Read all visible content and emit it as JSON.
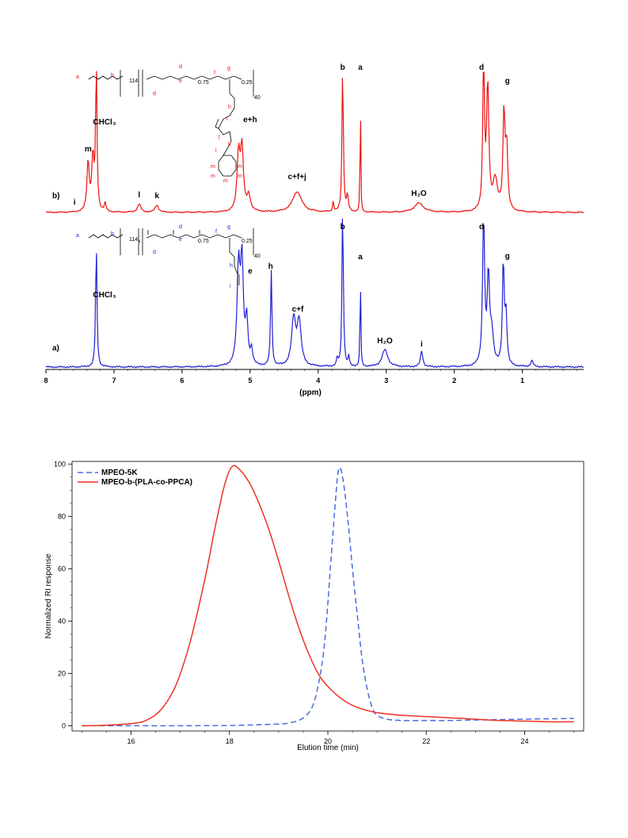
{
  "chart_data": [
    {
      "type": "line",
      "xlabel": "(ppm)",
      "ylabel": "",
      "xlim": [
        8.0,
        0.1
      ],
      "x_reversed": true,
      "xticks": [
        8,
        7,
        6,
        5,
        4,
        3,
        2,
        1
      ],
      "colors": {
        "a": "#1f1fd6",
        "b": "#ee1111"
      },
      "series": [
        {
          "name": "a)",
          "peaks": [
            {
              "ppm": 7.26,
              "h": 1.0,
              "w": 0.012
            },
            {
              "ppm": 5.17,
              "h": 0.78,
              "w": 0.025
            },
            {
              "ppm": 5.12,
              "h": 0.82,
              "w": 0.025
            },
            {
              "ppm": 5.05,
              "h": 0.35,
              "w": 0.02
            },
            {
              "ppm": 4.98,
              "h": 0.12,
              "w": 0.02
            },
            {
              "ppm": 4.69,
              "h": 0.78,
              "w": 0.012
            },
            {
              "ppm": 4.36,
              "h": 0.38,
              "w": 0.035
            },
            {
              "ppm": 4.28,
              "h": 0.36,
              "w": 0.035
            },
            {
              "ppm": 3.72,
              "h": 0.07,
              "w": 0.01
            },
            {
              "ppm": 3.64,
              "h": 1.3,
              "w": 0.012
            },
            {
              "ppm": 3.55,
              "h": 0.08,
              "w": 0.01
            },
            {
              "ppm": 3.38,
              "h": 0.85,
              "w": 0.006
            },
            {
              "ppm": 3.02,
              "h": 0.14,
              "w": 0.05
            },
            {
              "ppm": 2.48,
              "h": 0.13,
              "w": 0.02
            },
            {
              "ppm": 1.57,
              "h": 1.2,
              "w": 0.018
            },
            {
              "ppm": 1.5,
              "h": 0.7,
              "w": 0.02
            },
            {
              "ppm": 1.45,
              "h": 0.25,
              "w": 0.03
            },
            {
              "ppm": 1.28,
              "h": 0.85,
              "w": 0.016
            },
            {
              "ppm": 1.24,
              "h": 0.4,
              "w": 0.016
            },
            {
              "ppm": 0.86,
              "h": 0.05,
              "w": 0.02
            }
          ]
        },
        {
          "name": "b)",
          "peaks": [
            {
              "ppm": 7.38,
              "h": 0.48,
              "w": 0.02
            },
            {
              "ppm": 7.31,
              "h": 0.52,
              "w": 0.02
            },
            {
              "ppm": 7.26,
              "h": 1.4,
              "w": 0.012
            },
            {
              "ppm": 7.13,
              "h": 0.08,
              "w": 0.015
            },
            {
              "ppm": 6.63,
              "h": 0.08,
              "w": 0.03
            },
            {
              "ppm": 6.37,
              "h": 0.07,
              "w": 0.03
            },
            {
              "ppm": 5.17,
              "h": 0.55,
              "w": 0.025
            },
            {
              "ppm": 5.12,
              "h": 0.6,
              "w": 0.025
            },
            {
              "ppm": 5.02,
              "h": 0.15,
              "w": 0.03
            },
            {
              "ppm": 4.31,
              "h": 0.2,
              "w": 0.08
            },
            {
              "ppm": 3.78,
              "h": 0.1,
              "w": 0.01
            },
            {
              "ppm": 3.64,
              "h": 1.4,
              "w": 0.012
            },
            {
              "ppm": 3.57,
              "h": 0.15,
              "w": 0.015
            },
            {
              "ppm": 3.38,
              "h": 1.4,
              "w": 0.005
            },
            {
              "ppm": 2.52,
              "h": 0.09,
              "w": 0.08
            },
            {
              "ppm": 1.57,
              "h": 1.4,
              "w": 0.015
            },
            {
              "ppm": 1.51,
              "h": 1.2,
              "w": 0.02
            },
            {
              "ppm": 1.4,
              "h": 0.3,
              "w": 0.04
            },
            {
              "ppm": 1.27,
              "h": 0.95,
              "w": 0.018
            },
            {
              "ppm": 1.23,
              "h": 0.6,
              "w": 0.018
            }
          ]
        }
      ],
      "labels_a": [
        {
          "text": "CHCl3",
          "ppm": 7.14,
          "dy": -88
        },
        {
          "text": "e",
          "ppm": 5.0,
          "dy": -118
        },
        {
          "text": "h",
          "ppm": 4.7,
          "dy": -124
        },
        {
          "text": "c+f",
          "ppm": 4.3,
          "dy": -70
        },
        {
          "text": "b",
          "ppm": 3.64,
          "dy": -174
        },
        {
          "text": "a",
          "ppm": 3.38,
          "dy": -136
        },
        {
          "text": "H2O",
          "ppm": 3.02,
          "dy": -30
        },
        {
          "text": "i",
          "ppm": 2.48,
          "dy": -26
        },
        {
          "text": "d",
          "ppm": 1.6,
          "dy": -174
        },
        {
          "text": "g",
          "ppm": 1.22,
          "dy": -137
        }
      ],
      "labels_b": [
        {
          "text": "CHCl3",
          "ppm": 7.14,
          "dy": -111
        },
        {
          "text": "i",
          "ppm": 7.58,
          "dy": -10
        },
        {
          "text": "m",
          "ppm": 7.38,
          "dy": -77
        },
        {
          "text": "l",
          "ppm": 6.63,
          "dy": -19
        },
        {
          "text": "k",
          "ppm": 6.37,
          "dy": -18
        },
        {
          "text": "e+h",
          "ppm": 5.0,
          "dy": -114
        },
        {
          "text": "c+f+j",
          "ppm": 4.31,
          "dy": -42
        },
        {
          "text": "b",
          "ppm": 3.64,
          "dy": -180
        },
        {
          "text": "a",
          "ppm": 3.38,
          "dy": -180
        },
        {
          "text": "H2O",
          "ppm": 2.52,
          "dy": -21
        },
        {
          "text": "d",
          "ppm": 1.6,
          "dy": -180
        },
        {
          "text": "g",
          "ppm": 1.22,
          "dy": -163
        }
      ]
    },
    {
      "type": "line",
      "xlabel": "Elution time (min)",
      "ylabel": "Normalized RI response",
      "xlim": [
        14.8,
        25.2
      ],
      "ylim": [
        -2,
        101
      ],
      "xticks": [
        16,
        18,
        20,
        22,
        24
      ],
      "yticks": [
        0,
        20,
        40,
        60,
        80,
        100
      ],
      "legend": "top-left",
      "series": [
        {
          "name": "MPEO-5K",
          "style": "dashed",
          "color": "#4a6be0",
          "points": [
            [
              15.0,
              0
            ],
            [
              16.0,
              0
            ],
            [
              17.0,
              0
            ],
            [
              18.0,
              0.1
            ],
            [
              18.8,
              0.5
            ],
            [
              19.2,
              1
            ],
            [
              19.5,
              3
            ],
            [
              19.7,
              8
            ],
            [
              19.85,
              20
            ],
            [
              19.95,
              35
            ],
            [
              20.05,
              60
            ],
            [
              20.15,
              85
            ],
            [
              20.22,
              98
            ],
            [
              20.3,
              95
            ],
            [
              20.4,
              80
            ],
            [
              20.5,
              60
            ],
            [
              20.6,
              42
            ],
            [
              20.7,
              25
            ],
            [
              20.8,
              14
            ],
            [
              20.9,
              7
            ],
            [
              21.0,
              4
            ],
            [
              21.2,
              2.5
            ],
            [
              21.5,
              2
            ],
            [
              22.0,
              2
            ],
            [
              22.5,
              2
            ],
            [
              23.0,
              2.2
            ],
            [
              24.0,
              2.5
            ],
            [
              25.0,
              2.8
            ]
          ]
        },
        {
          "name": "MPEO-b-(PLA-co-PPCA)",
          "style": "solid",
          "color": "#ee3322",
          "points": [
            [
              15.0,
              0
            ],
            [
              15.5,
              0.2
            ],
            [
              16.0,
              0.8
            ],
            [
              16.3,
              2
            ],
            [
              16.6,
              6
            ],
            [
              16.9,
              15
            ],
            [
              17.2,
              32
            ],
            [
              17.5,
              56
            ],
            [
              17.7,
              75
            ],
            [
              17.9,
              92
            ],
            [
              18.05,
              99
            ],
            [
              18.2,
              98
            ],
            [
              18.4,
              93
            ],
            [
              18.6,
              85
            ],
            [
              18.8,
              75
            ],
            [
              19.0,
              63
            ],
            [
              19.2,
              50
            ],
            [
              19.4,
              38
            ],
            [
              19.6,
              28
            ],
            [
              19.8,
              20
            ],
            [
              20.0,
              15
            ],
            [
              20.3,
              10
            ],
            [
              20.6,
              7
            ],
            [
              21.0,
              5
            ],
            [
              21.5,
              4
            ],
            [
              22.0,
              3.5
            ],
            [
              22.5,
              3
            ],
            [
              23.0,
              2.5
            ],
            [
              23.5,
              2
            ],
            [
              24.0,
              1.8
            ],
            [
              24.5,
              1.5
            ],
            [
              25.0,
              1.5
            ]
          ]
        }
      ]
    }
  ]
}
